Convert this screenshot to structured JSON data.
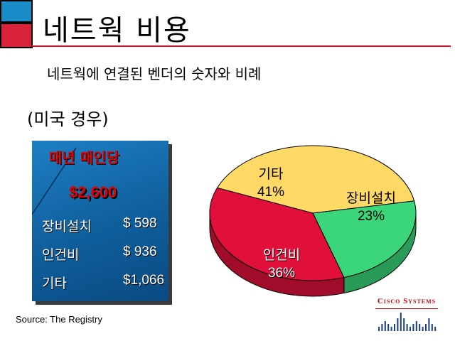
{
  "slide": {
    "title": "네트웍 비용",
    "subtitle": "네트웍에 연결된 벤더의 숫자와 비례",
    "note": "(미국 경우)",
    "source": "Source: The Registry",
    "logo": "Cisco Systems"
  },
  "panel": {
    "heading": "매년 매인당",
    "total": "$2,600",
    "rows": [
      {
        "label": "장비설치",
        "amount": "$  598"
      },
      {
        "label": "인건비",
        "amount": "$  936"
      },
      {
        "label": "기타",
        "amount": "$1,066"
      }
    ]
  },
  "colors": {
    "square_top": "#1a8cc8",
    "square_bottom": "#d8233a",
    "title_line": "#c8102e",
    "panel": "#0f5e9c",
    "panel_text_red": "#e00000",
    "slice_other": "#ffd966",
    "slice_labor": "#e0103a",
    "slice_equipment": "#3bd67a"
  },
  "chart_data": {
    "type": "pie",
    "title": "",
    "slices": [
      {
        "label": "기타",
        "value": 41,
        "display": "41%",
        "color": "#ffd966"
      },
      {
        "label": "장비설치",
        "value": 23,
        "display": "23%",
        "color": "#3bd67a"
      },
      {
        "label": "인건비",
        "value": 36,
        "display": "36%",
        "color": "#e0103a"
      }
    ]
  }
}
